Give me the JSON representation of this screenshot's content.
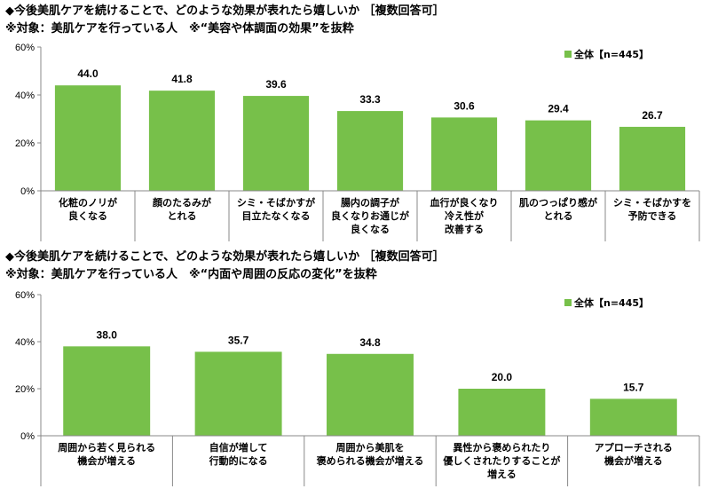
{
  "chart_data": [
    {
      "type": "bar",
      "title": "◆今後美肌ケアを続けることで、どのような効果が表れたら嬉しいか ［複数回答可］",
      "subtitle": "※対象：美肌ケアを行っている人　※“美容や体調面の効果”を抜粋",
      "legend": "全体【n=445】",
      "legend_position": "top-right",
      "series_color": "#77c04a",
      "ylim": [
        0,
        60
      ],
      "yticks": [
        "0%",
        "20%",
        "40%",
        "60%"
      ],
      "categories": [
        [
          "化粧のノリが",
          "良くなる"
        ],
        [
          "顔のたるみが",
          "とれる"
        ],
        [
          "シミ・そばかすが",
          "目立たなくなる"
        ],
        [
          "腸内の調子が",
          "良くなりお通じが",
          "良くなる"
        ],
        [
          "血行が良くなり",
          "冷え性が",
          "改善する"
        ],
        [
          "肌のつっぱり感が",
          "とれる"
        ],
        [
          "シミ・そばかすを",
          "予防できる"
        ]
      ],
      "values": [
        44.0,
        41.8,
        39.6,
        33.3,
        30.6,
        29.4,
        26.7
      ],
      "value_labels": [
        "44.0",
        "41.8",
        "39.6",
        "33.3",
        "30.6",
        "29.4",
        "26.7"
      ]
    },
    {
      "type": "bar",
      "title": "◆今後美肌ケアを続けることで、どのような効果が表れたら嬉しいか ［複数回答可］",
      "subtitle": "※対象：美肌ケアを行っている人　※“内面や周囲の反応の変化”を抜粋",
      "legend": "全体【n=445】",
      "legend_position": "top-right",
      "series_color": "#77c04a",
      "ylim": [
        0,
        60
      ],
      "yticks": [
        "0%",
        "20%",
        "40%",
        "60%"
      ],
      "categories": [
        [
          "周囲から若く見られる",
          "機会が増える"
        ],
        [
          "自信が増して",
          "行動的になる"
        ],
        [
          "周囲から美肌を",
          "褒められる機会が増える"
        ],
        [
          "異性から褒められたり",
          "優しくされたりすることが",
          "増える"
        ],
        [
          "アプローチされる",
          "機会が増える"
        ]
      ],
      "values": [
        38.0,
        35.7,
        34.8,
        20.0,
        15.7
      ],
      "value_labels": [
        "38.0",
        "35.7",
        "34.8",
        "20.0",
        "15.7"
      ]
    }
  ]
}
